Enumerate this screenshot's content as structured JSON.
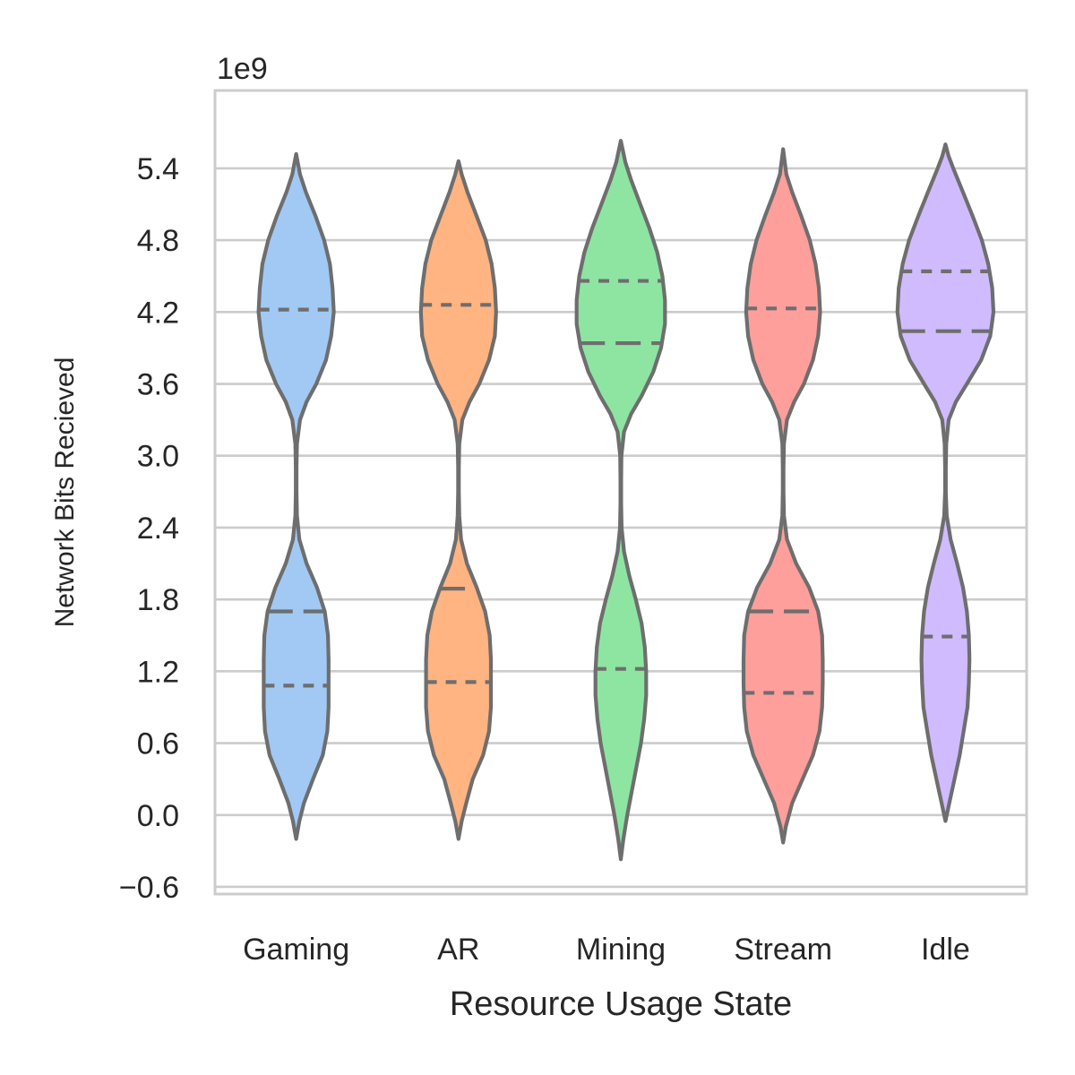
{
  "chart_data": {
    "type": "violin",
    "title": "",
    "xlabel": "Resource Usage State",
    "ylabel": "Network Bits Recieved",
    "y_offset_label": "1e9",
    "y_multiplier": 1000000000,
    "ylim": [
      -0.66,
      6.05
    ],
    "yticks": [
      -0.6,
      0.0,
      0.6,
      1.2,
      1.8,
      2.4,
      3.0,
      3.6,
      4.2,
      4.8,
      5.4
    ],
    "ytick_labels": [
      "−0.6",
      "0.0",
      "0.6",
      "1.2",
      "1.8",
      "2.4",
      "3.0",
      "3.6",
      "4.2",
      "4.8",
      "5.4"
    ],
    "grid": "horizontal",
    "inner": "quartile",
    "categories": [
      "Gaming",
      "AR",
      "Mining",
      "Stream",
      "Idle"
    ],
    "colors": [
      "#a1c9f4",
      "#ffb482",
      "#8de5a1",
      "#ff9f9b",
      "#d0bbff"
    ],
    "line_color": "#6e6e6e",
    "violins": [
      {
        "category": "Gaming",
        "min": -0.2,
        "max": 5.52,
        "q1": 1.08,
        "median": 1.7,
        "q3": 4.22,
        "profile": [
          [
            -0.2,
            0.0
          ],
          [
            -0.05,
            0.05
          ],
          [
            0.1,
            0.12
          ],
          [
            0.3,
            0.26
          ],
          [
            0.5,
            0.41
          ],
          [
            0.7,
            0.48
          ],
          [
            0.9,
            0.5
          ],
          [
            1.1,
            0.5
          ],
          [
            1.3,
            0.5
          ],
          [
            1.5,
            0.49
          ],
          [
            1.7,
            0.44
          ],
          [
            1.9,
            0.32
          ],
          [
            2.1,
            0.16
          ],
          [
            2.3,
            0.05
          ],
          [
            2.5,
            0.012
          ],
          [
            2.7,
            0.006
          ],
          [
            2.9,
            0.006
          ],
          [
            3.1,
            0.012
          ],
          [
            3.3,
            0.06
          ],
          [
            3.45,
            0.16
          ],
          [
            3.6,
            0.31
          ],
          [
            3.8,
            0.46
          ],
          [
            4.0,
            0.54
          ],
          [
            4.2,
            0.58
          ],
          [
            4.4,
            0.56
          ],
          [
            4.6,
            0.52
          ],
          [
            4.8,
            0.43
          ],
          [
            5.0,
            0.3
          ],
          [
            5.2,
            0.15
          ],
          [
            5.35,
            0.06
          ],
          [
            5.52,
            0.0
          ]
        ]
      },
      {
        "category": "AR",
        "min": -0.2,
        "max": 5.46,
        "q1": 1.11,
        "median": 1.89,
        "q3": 4.26,
        "profile": [
          [
            -0.2,
            0.0
          ],
          [
            -0.05,
            0.05
          ],
          [
            0.1,
            0.12
          ],
          [
            0.3,
            0.22
          ],
          [
            0.5,
            0.38
          ],
          [
            0.7,
            0.47
          ],
          [
            0.9,
            0.5
          ],
          [
            1.1,
            0.5
          ],
          [
            1.3,
            0.5
          ],
          [
            1.5,
            0.48
          ],
          [
            1.7,
            0.41
          ],
          [
            1.9,
            0.28
          ],
          [
            2.1,
            0.13
          ],
          [
            2.3,
            0.04
          ],
          [
            2.5,
            0.012
          ],
          [
            2.7,
            0.006
          ],
          [
            2.9,
            0.006
          ],
          [
            3.1,
            0.012
          ],
          [
            3.3,
            0.06
          ],
          [
            3.45,
            0.17
          ],
          [
            3.6,
            0.32
          ],
          [
            3.8,
            0.47
          ],
          [
            4.0,
            0.56
          ],
          [
            4.2,
            0.58
          ],
          [
            4.4,
            0.56
          ],
          [
            4.6,
            0.51
          ],
          [
            4.8,
            0.42
          ],
          [
            5.0,
            0.28
          ],
          [
            5.2,
            0.14
          ],
          [
            5.35,
            0.05
          ],
          [
            5.46,
            0.0
          ]
        ]
      },
      {
        "category": "Mining",
        "min": -0.37,
        "max": 5.63,
        "q1": 1.22,
        "median": 3.94,
        "q3": 4.46,
        "profile": [
          [
            -0.37,
            0.0
          ],
          [
            -0.2,
            0.04
          ],
          [
            0.0,
            0.1
          ],
          [
            0.2,
            0.17
          ],
          [
            0.4,
            0.24
          ],
          [
            0.6,
            0.31
          ],
          [
            0.8,
            0.36
          ],
          [
            1.0,
            0.39
          ],
          [
            1.2,
            0.39
          ],
          [
            1.4,
            0.37
          ],
          [
            1.6,
            0.32
          ],
          [
            1.8,
            0.23
          ],
          [
            2.0,
            0.13
          ],
          [
            2.2,
            0.05
          ],
          [
            2.4,
            0.012
          ],
          [
            2.6,
            0.005
          ],
          [
            2.8,
            0.005
          ],
          [
            3.0,
            0.01
          ],
          [
            3.2,
            0.05
          ],
          [
            3.35,
            0.16
          ],
          [
            3.5,
            0.32
          ],
          [
            3.7,
            0.5
          ],
          [
            3.9,
            0.62
          ],
          [
            4.1,
            0.68
          ],
          [
            4.3,
            0.68
          ],
          [
            4.5,
            0.64
          ],
          [
            4.7,
            0.56
          ],
          [
            4.9,
            0.44
          ],
          [
            5.1,
            0.3
          ],
          [
            5.3,
            0.16
          ],
          [
            5.45,
            0.07
          ],
          [
            5.63,
            0.0
          ]
        ]
      },
      {
        "category": "Stream",
        "min": -0.23,
        "max": 5.56,
        "q1": 1.02,
        "median": 1.7,
        "q3": 4.23,
        "profile": [
          [
            -0.23,
            0.0
          ],
          [
            -0.1,
            0.04
          ],
          [
            0.1,
            0.14
          ],
          [
            0.3,
            0.3
          ],
          [
            0.5,
            0.46
          ],
          [
            0.7,
            0.56
          ],
          [
            0.9,
            0.6
          ],
          [
            1.1,
            0.61
          ],
          [
            1.3,
            0.61
          ],
          [
            1.5,
            0.6
          ],
          [
            1.7,
            0.54
          ],
          [
            1.9,
            0.4
          ],
          [
            2.1,
            0.2
          ],
          [
            2.3,
            0.06
          ],
          [
            2.5,
            0.012
          ],
          [
            2.7,
            0.006
          ],
          [
            2.9,
            0.006
          ],
          [
            3.1,
            0.012
          ],
          [
            3.3,
            0.06
          ],
          [
            3.45,
            0.17
          ],
          [
            3.6,
            0.32
          ],
          [
            3.8,
            0.46
          ],
          [
            4.0,
            0.54
          ],
          [
            4.2,
            0.57
          ],
          [
            4.4,
            0.55
          ],
          [
            4.6,
            0.5
          ],
          [
            4.8,
            0.41
          ],
          [
            5.0,
            0.28
          ],
          [
            5.2,
            0.14
          ],
          [
            5.35,
            0.05
          ],
          [
            5.56,
            0.0
          ]
        ]
      },
      {
        "category": "Idle",
        "min": -0.05,
        "max": 5.6,
        "q1": 1.49,
        "median": 4.04,
        "q3": 4.54,
        "profile": [
          [
            -0.05,
            0.0
          ],
          [
            0.1,
            0.06
          ],
          [
            0.3,
            0.14
          ],
          [
            0.5,
            0.22
          ],
          [
            0.7,
            0.28
          ],
          [
            0.9,
            0.34
          ],
          [
            1.1,
            0.36
          ],
          [
            1.3,
            0.37
          ],
          [
            1.5,
            0.36
          ],
          [
            1.7,
            0.33
          ],
          [
            1.9,
            0.27
          ],
          [
            2.1,
            0.18
          ],
          [
            2.3,
            0.08
          ],
          [
            2.5,
            0.02
          ],
          [
            2.7,
            0.006
          ],
          [
            2.9,
            0.006
          ],
          [
            3.1,
            0.012
          ],
          [
            3.3,
            0.05
          ],
          [
            3.45,
            0.16
          ],
          [
            3.6,
            0.33
          ],
          [
            3.8,
            0.55
          ],
          [
            4.0,
            0.69
          ],
          [
            4.2,
            0.74
          ],
          [
            4.4,
            0.72
          ],
          [
            4.6,
            0.66
          ],
          [
            4.8,
            0.56
          ],
          [
            5.0,
            0.42
          ],
          [
            5.2,
            0.27
          ],
          [
            5.4,
            0.12
          ],
          [
            5.5,
            0.05
          ],
          [
            5.6,
            0.0
          ]
        ]
      }
    ]
  }
}
